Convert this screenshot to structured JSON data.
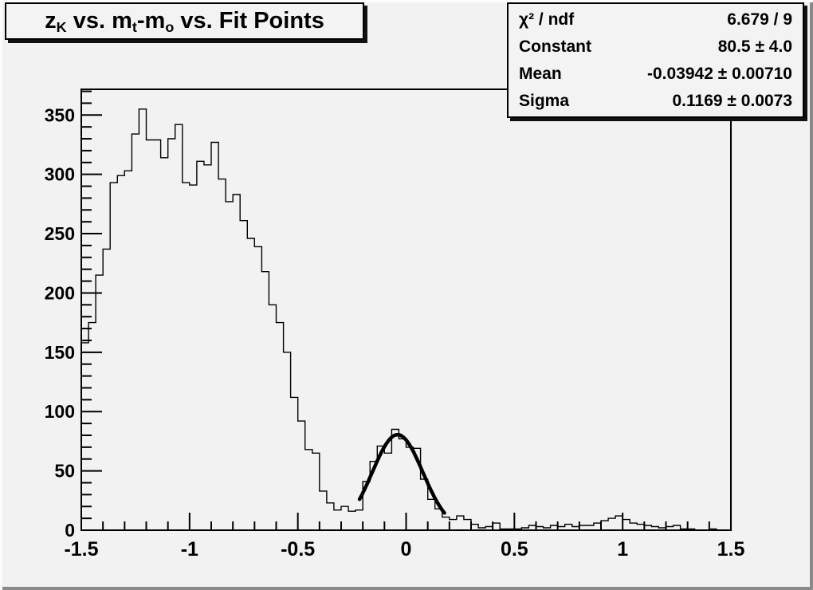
{
  "canvas": {
    "background": "#f2f2f2",
    "border_light": "#fdfdfd",
    "border_dark": "#8a8a8a",
    "line_color": "#000000",
    "box_fill": "#f3f3f3",
    "shadow_color": "#111111"
  },
  "title": {
    "text": "zK vs. mt-mo vs. Fit Points",
    "segments": [
      {
        "t": "z"
      },
      {
        "t": "K",
        "sub": true
      },
      {
        "t": " vs. m"
      },
      {
        "t": "t",
        "sub": true
      },
      {
        "t": "-m"
      },
      {
        "t": "o",
        "sub": true
      },
      {
        "t": " vs. Fit Points"
      }
    ]
  },
  "stats": {
    "rows": [
      {
        "label": "χ² / ndf",
        "value": "6.679 / 9"
      },
      {
        "label": "Constant",
        "value": "80.5 ± 4.0"
      },
      {
        "label": "Mean",
        "value": "-0.03942 ± 0.00710"
      },
      {
        "label": "Sigma",
        "value": "0.1169 ± 0.0073"
      }
    ]
  },
  "chart_data": {
    "type": "bar",
    "subtype": "histogram-step-outline",
    "title": "zK vs. mt-mo vs. Fit Points",
    "xlabel": "",
    "ylabel": "",
    "xlim": [
      -1.5,
      1.5
    ],
    "ylim": [
      0,
      371.7
    ],
    "grid": false,
    "legend_position": "stats-box-top-right",
    "bin_start": -1.5,
    "bin_width": 0.0333333,
    "values": [
      158,
      175,
      215,
      237,
      293,
      299,
      303,
      334,
      355,
      329,
      329,
      314,
      330,
      342,
      293,
      291,
      311,
      308,
      327,
      296,
      277,
      283,
      261,
      246,
      239,
      218,
      190,
      175,
      150,
      112,
      92,
      68,
      65,
      33,
      23,
      17,
      20,
      16,
      17,
      41,
      58,
      71,
      65,
      85,
      77,
      70,
      69,
      43,
      26,
      18,
      11,
      9,
      12,
      9,
      5,
      2,
      3,
      6,
      1,
      1,
      1,
      2,
      4,
      3,
      2,
      4,
      3,
      5,
      3,
      4,
      4,
      6,
      8,
      10,
      12,
      9,
      6,
      5,
      4,
      3,
      2,
      3,
      4,
      1,
      1,
      0,
      0,
      1,
      0,
      0
    ],
    "x_major_ticks": [
      -1.5,
      -1,
      -0.5,
      0,
      0.5,
      1,
      1.5
    ],
    "x_tick_labels": [
      "-1.5",
      "-1",
      "-0.5",
      "0",
      "0.5",
      "1",
      "1.5"
    ],
    "x_minor_step": 0.1,
    "y_major_ticks": [
      0,
      50,
      100,
      150,
      200,
      250,
      300,
      350
    ],
    "y_tick_labels": [
      "0",
      "50",
      "100",
      "150",
      "200",
      "250",
      "300",
      "350"
    ],
    "y_minor_step": 10,
    "fit_curve": {
      "type": "gaussian",
      "constant": 80.5,
      "mean": -0.03942,
      "sigma": 0.1169,
      "x_range": [
        -0.215,
        0.178
      ]
    }
  }
}
